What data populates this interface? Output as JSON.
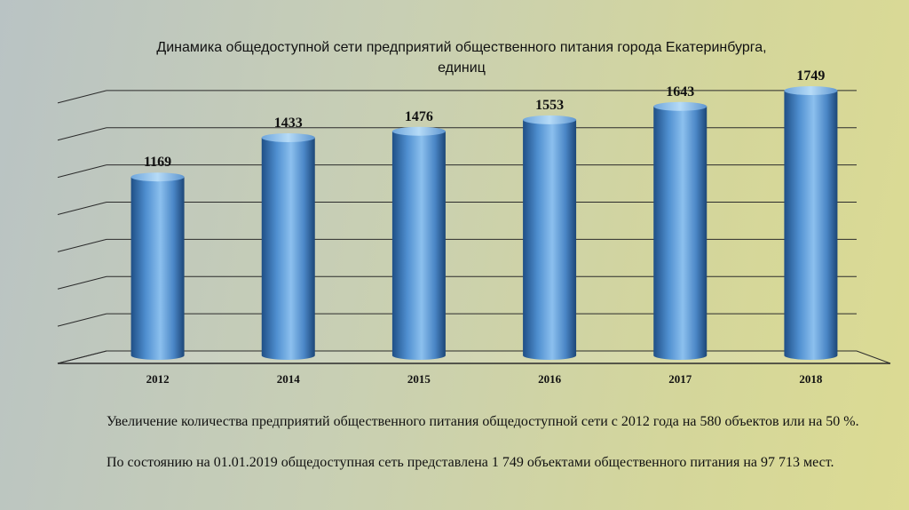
{
  "chart_data": {
    "type": "bar",
    "title": "Динамика общедоступной сети предприятий общественного питания города Екатеринбурга, единиц",
    "categories": [
      "2012",
      "2014",
      "2015",
      "2016",
      "2017",
      "2018"
    ],
    "values": [
      1169,
      1433,
      1476,
      1553,
      1643,
      1749
    ],
    "xlabel": "",
    "ylabel": "",
    "ylim": [
      0,
      2100
    ],
    "grid": true,
    "legend": "none",
    "bar_color": "#4f8fd0"
  },
  "notes": {
    "paragraph1": "Увеличение количества предприятий общественного питания общедоступной сети с 2012 года на 580 объектов или на 50 %.",
    "paragraph2": "По состоянию на 01.01.2019 общедоступная сеть представлена 1 749 объектами общественного питания на 97 713 мест."
  }
}
